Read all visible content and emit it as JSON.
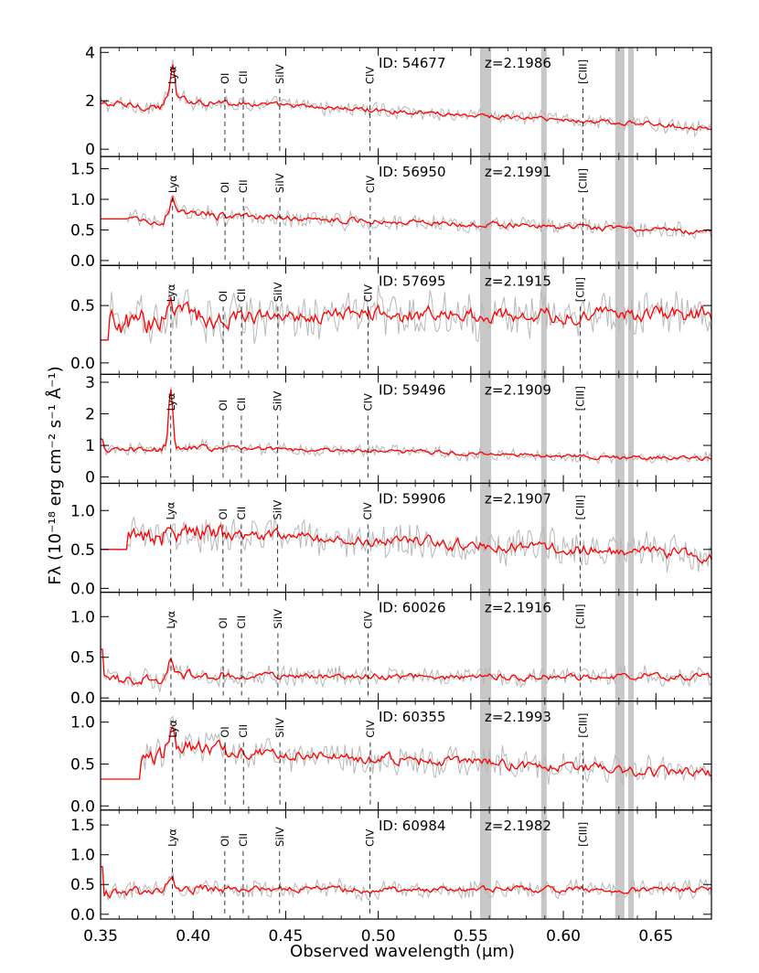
{
  "chart_data": {
    "type": "line",
    "xlabel": "Observed wavelength (μm)",
    "ylabel": "Fλ (10⁻¹⁸ erg cm⁻² s⁻¹ Å⁻¹)",
    "xlim": [
      0.35,
      0.68
    ],
    "xticks": [
      "0.35",
      "0.40",
      "0.45",
      "0.50",
      "0.55",
      "0.60",
      "0.65"
    ],
    "colors": {
      "spectrum": "#ff0000",
      "raw": "#b8b8b8",
      "sky_band": "#c8c8c8",
      "line_marker": "#000000"
    },
    "sky_bands": [
      [
        0.555,
        0.561
      ],
      [
        0.588,
        0.591
      ],
      [
        0.628,
        0.633
      ],
      [
        0.635,
        0.638
      ]
    ],
    "line_names": [
      "Lyα",
      "OI",
      "CII",
      "SiIV",
      "CIV",
      "[CIII]"
    ],
    "rest_wavelengths": [
      0.12157,
      0.13042,
      0.13352,
      0.13968,
      0.15494,
      0.19088
    ],
    "panels": [
      {
        "id_label": "ID: 54677",
        "z_label": "z=2.1986",
        "z": 2.1986,
        "ylim": [
          -0.3,
          4.2
        ],
        "yticks": [
          "0",
          "2",
          "4"
        ],
        "ytick_values": [
          0,
          2,
          4
        ],
        "level": 2.0,
        "slope": -0.55,
        "noise": 0.18,
        "emission": 1.4,
        "start": 0.35,
        "step_value": 2.6
      },
      {
        "id_label": "ID: 56950",
        "z_label": "z=2.1991",
        "z": 2.1991,
        "ylim": [
          -0.08,
          1.7
        ],
        "yticks": [
          "0.0",
          "0.5",
          "1.0",
          "1.5"
        ],
        "ytick_values": [
          0,
          0.5,
          1.0,
          1.5
        ],
        "level": 0.75,
        "slope": -0.38,
        "noise": 0.08,
        "emission": 0.2,
        "start": 0.365,
        "step_value": 0.68
      },
      {
        "id_label": "ID: 57695",
        "z_label": "z=2.1915",
        "z": 2.1915,
        "ylim": [
          -0.1,
          0.85
        ],
        "yticks": [
          "0.0",
          "0.5"
        ],
        "ytick_values": [
          0,
          0.5
        ],
        "level": 0.42,
        "slope": 0.0,
        "noise": 0.12,
        "emission": 0.2,
        "start": 0.355,
        "step_value": 0.2
      },
      {
        "id_label": "ID: 59496",
        "z_label": "z=2.1909",
        "z": 2.1909,
        "ylim": [
          -0.2,
          3.25
        ],
        "yticks": [
          "0",
          "1",
          "2",
          "3"
        ],
        "ytick_values": [
          0,
          1,
          2,
          3
        ],
        "level": 0.95,
        "slope": -0.4,
        "noise": 0.12,
        "emission": 1.9,
        "start": 0.352,
        "step_value": 1.2
      },
      {
        "id_label": "ID: 59906",
        "z_label": "z=2.1907",
        "z": 2.1907,
        "ylim": [
          -0.05,
          1.35
        ],
        "yticks": [
          "0.0",
          "0.5",
          "1.0"
        ],
        "ytick_values": [
          0,
          0.5,
          1.0
        ],
        "level": 0.72,
        "slope": -0.4,
        "noise": 0.14,
        "emission": 0.15,
        "start": 0.365,
        "step_value": 0.5
      },
      {
        "id_label": "ID: 60026",
        "z_label": "z=2.1916",
        "z": 2.1916,
        "ylim": [
          -0.04,
          1.3
        ],
        "yticks": [
          "0.0",
          "0.5",
          "1.0"
        ],
        "ytick_values": [
          0,
          0.5,
          1.0
        ],
        "level": 0.27,
        "slope": -0.05,
        "noise": 0.07,
        "emission": 0.22,
        "start": 0.352,
        "step_value": 0.6
      },
      {
        "id_label": "ID: 60355",
        "z_label": "z=2.1993",
        "z": 2.1993,
        "ylim": [
          -0.05,
          1.25
        ],
        "yticks": [
          "0.0",
          "0.5",
          "1.0"
        ],
        "ytick_values": [
          0,
          0.5,
          1.0
        ],
        "level": 0.68,
        "slope": -0.45,
        "noise": 0.11,
        "emission": 0.3,
        "start": 0.372,
        "step_value": 0.32
      },
      {
        "id_label": "ID: 60984",
        "z_label": "z=2.1982",
        "z": 2.1982,
        "ylim": [
          -0.08,
          1.75
        ],
        "yticks": [
          "0.0",
          "0.5",
          "1.0",
          "1.5"
        ],
        "ytick_values": [
          0,
          0.5,
          1.0,
          1.5
        ],
        "level": 0.42,
        "slope": 0.0,
        "noise": 0.09,
        "emission": 0.15,
        "start": 0.352,
        "step_value": 0.8
      }
    ]
  }
}
